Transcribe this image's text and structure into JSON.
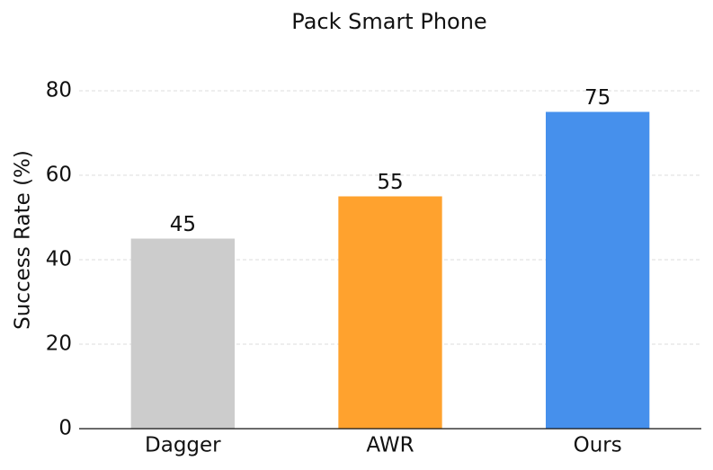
{
  "chart_data": {
    "type": "bar",
    "title": "Pack Smart Phone",
    "y_label": "Success Rate (%)",
    "categories": [
      "Dagger",
      "AWR",
      "Ours"
    ],
    "values": [
      45,
      55,
      75
    ],
    "colors": [
      "#cccccc",
      "#ffa22e",
      "#4690ec"
    ],
    "ylim": [
      0,
      80
    ],
    "yticks": [
      0,
      20,
      40,
      60,
      80
    ],
    "grid": true
  }
}
